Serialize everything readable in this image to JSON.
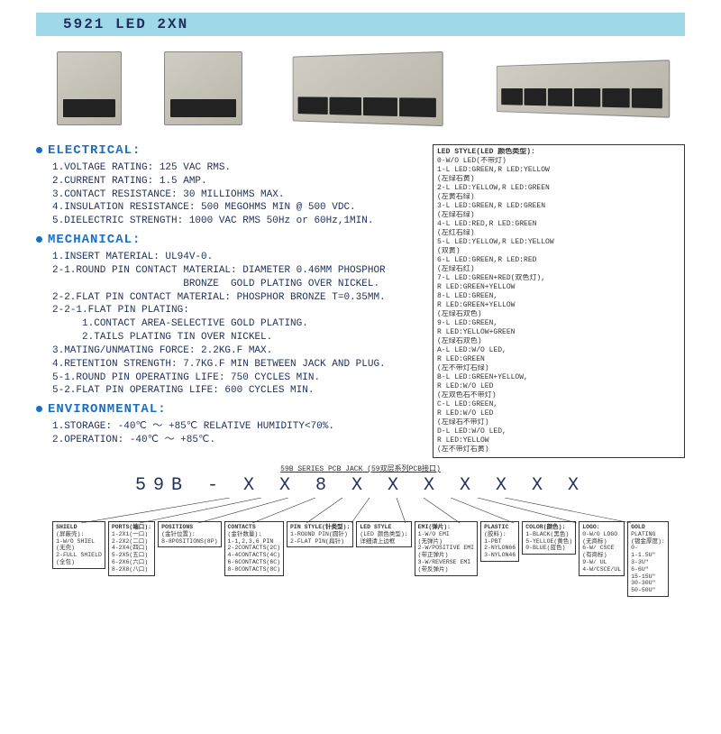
{
  "title": "5921 LED 2XN",
  "colors": {
    "titlebar_bg": "#9fd8e8",
    "text": "#1e2f5a",
    "heading": "#1b6fc2",
    "box_border": "#333333"
  },
  "sections": {
    "electrical": {
      "heading": "ELECTRICAL:",
      "lines": [
        "1.VOLTAGE RATING: 125 VAC RMS.",
        "2.CURRENT RATING: 1.5 AMP.",
        "3.CONTACT RESISTANCE: 30 MILLIOHMS MAX.",
        "4.INSULATION RESISTANCE: 500 MEGOHMS MIN @ 500 VDC.",
        "5.DIELECTRIC STRENGTH: 1000 VAC RMS 50Hz or 60Hz,1MIN."
      ]
    },
    "mechanical": {
      "heading": "MECHANICAL:",
      "lines": [
        "1.INSERT MATERIAL: UL94V-0.",
        "2-1.ROUND PIN CONTACT MATERIAL: DIAMETER 0.46MM PHOSPHOR",
        "                      BRONZE  GOLD PLATING OVER NICKEL.",
        "2-2.FLAT PIN CONTACT MATERIAL: PHOSPHOR BRONZE T=0.35MM.",
        "2-2-1.FLAT PIN PLATING:",
        "     1.CONTACT AREA-SELECTIVE GOLD PLATING.",
        "     2.TAILS PLATING TIN OVER NICKEL.",
        "3.MATING/UNMATING FORCE: 2.2KG.F MAX.",
        "4.RETENTION STRENGTH: 7.7KG.F MIN BETWEEN JACK AND PLUG.",
        "5-1.ROUND PIN OPERATING LIFE: 750 CYCLES MIN.",
        "5-2.FLAT PIN OPERATING LIFE: 600 CYCLES MIN."
      ]
    },
    "environmental": {
      "heading": "ENVIRONMENTAL:",
      "lines": [
        "1.STORAGE: -40℃ ～ +85℃ RELATIVE HUMIDITY<70%.",
        "2.OPERATION: -40℃ ～ +85℃."
      ]
    }
  },
  "led_box": {
    "title": "LED STYLE(LED 颜色类型):",
    "items": [
      "0-W/O LED(不带灯)",
      "1-L LED:GREEN,R LED:YELLOW",
      "  (左绿右黄)",
      "2-L LED:YELLOW,R LED:GREEN",
      "  (左黄右绿)",
      "3-L LED:GREEN,R LED:GREEN",
      "  (左绿右绿)",
      "4-L LED:RED,R LED:GREEN",
      "  (左红右绿)",
      "5-L LED:YELLOW,R LED:YELLOW",
      "  (双黄)",
      "6-L LED:GREEN,R LED:RED",
      "  (左绿右红)",
      "7-L LED:GREEN+RED(双色灯),",
      "  R LED:GREEN+YELLOW",
      "8-L LED:GREEN,",
      "  R LED:GREEN+YELLOW",
      "  (左绿右双色)",
      "9-L LED:GREEN,",
      "  R LED:YELLOW+GREEN",
      "  (左绿右双色)",
      "A-L LED:W/O LED,",
      "  R LED:GREEN",
      "  (左不带灯右绿)",
      "B-L LED:GREEN+YELLOW,",
      "  R LED:W/O LED",
      "  (左双色右不带灯)",
      "C-L LED:GREEN,",
      "  R LED:W/O LED",
      "  (左绿右不带灯)",
      "D-L LED:W/O LED,",
      "  R LED:YELLOW",
      "  (左不带灯右黄)"
    ]
  },
  "part_number": {
    "label_top": "59B SERIES PCB JACK",
    "label_sub": "(59双层系列PCB接口)",
    "code": "59B - X X 8 X X X X X X X"
  },
  "option_boxes": [
    {
      "h": "SHIELD",
      "sub": "(屏蔽壳):",
      "lines": [
        "1-W/O SHIEL",
        "(无壳)",
        "2-FULL SHIELD",
        "(全包)"
      ]
    },
    {
      "h": "PORTS(端口):",
      "sub": "",
      "lines": [
        "1-2X1(一口)",
        "2-2X2(二口)",
        "4-2X4(四口)",
        "5-2X5(五口)",
        "6-2X6(六口)",
        "8-2X8(八口)"
      ]
    },
    {
      "h": "POSITIONS",
      "sub": "(金针位置):",
      "lines": [
        "8-8POSITIONS(8P)"
      ]
    },
    {
      "h": "CONTACTS",
      "sub": "(金针数量):",
      "lines": [
        "1-1,2,3,6 PIN",
        "2-2CONTACTS(2C)",
        "4-4CONTACTS(4C)",
        "6-6CONTACTS(6C)",
        "8-8CONTACTS(8C)"
      ]
    },
    {
      "h": "PIN STYLE(针类型):",
      "sub": "",
      "lines": [
        "1-ROUND PIN(圆针)",
        "2-FLAT PIN(扁针)"
      ]
    },
    {
      "h": "LED STYLE",
      "sub": "(LED 颜色类型):",
      "lines": [
        "详细请上边框"
      ]
    },
    {
      "h": "EMI(弹片):",
      "sub": "",
      "lines": [
        "1-W/O EMI",
        "(无弹片)",
        "2-W/POSITIVE EMI",
        "(带正弹片)",
        "3-W/REVERSE EMI",
        "(带反弹片)"
      ]
    },
    {
      "h": "PLASTIC",
      "sub": "(胶料):",
      "lines": [
        "1-PBT",
        "2-NYLON66",
        "3-NYLON46"
      ]
    },
    {
      "h": "COLOR(颜色):",
      "sub": "",
      "lines": [
        "1-BLACK(黑色)",
        "5-YELLOE(黄色)",
        "0-BLUE(蓝色)"
      ]
    },
    {
      "h": "LOGO:",
      "sub": "",
      "lines": [
        "0-W/O LOGO",
        "(无商标)",
        "6-W/ CSCE",
        "(有商标)",
        "9-W/ UL",
        "4-W/CSCE/UL"
      ]
    },
    {
      "h": "GOLD",
      "sub": "PLATING",
      "lines": [
        "(镀金厚度):",
        "0-",
        "1-1.5U\"",
        "3-3U\"",
        "6-6U\"",
        "15-15U\"",
        "30-30U\"",
        "50-50U\""
      ]
    }
  ]
}
